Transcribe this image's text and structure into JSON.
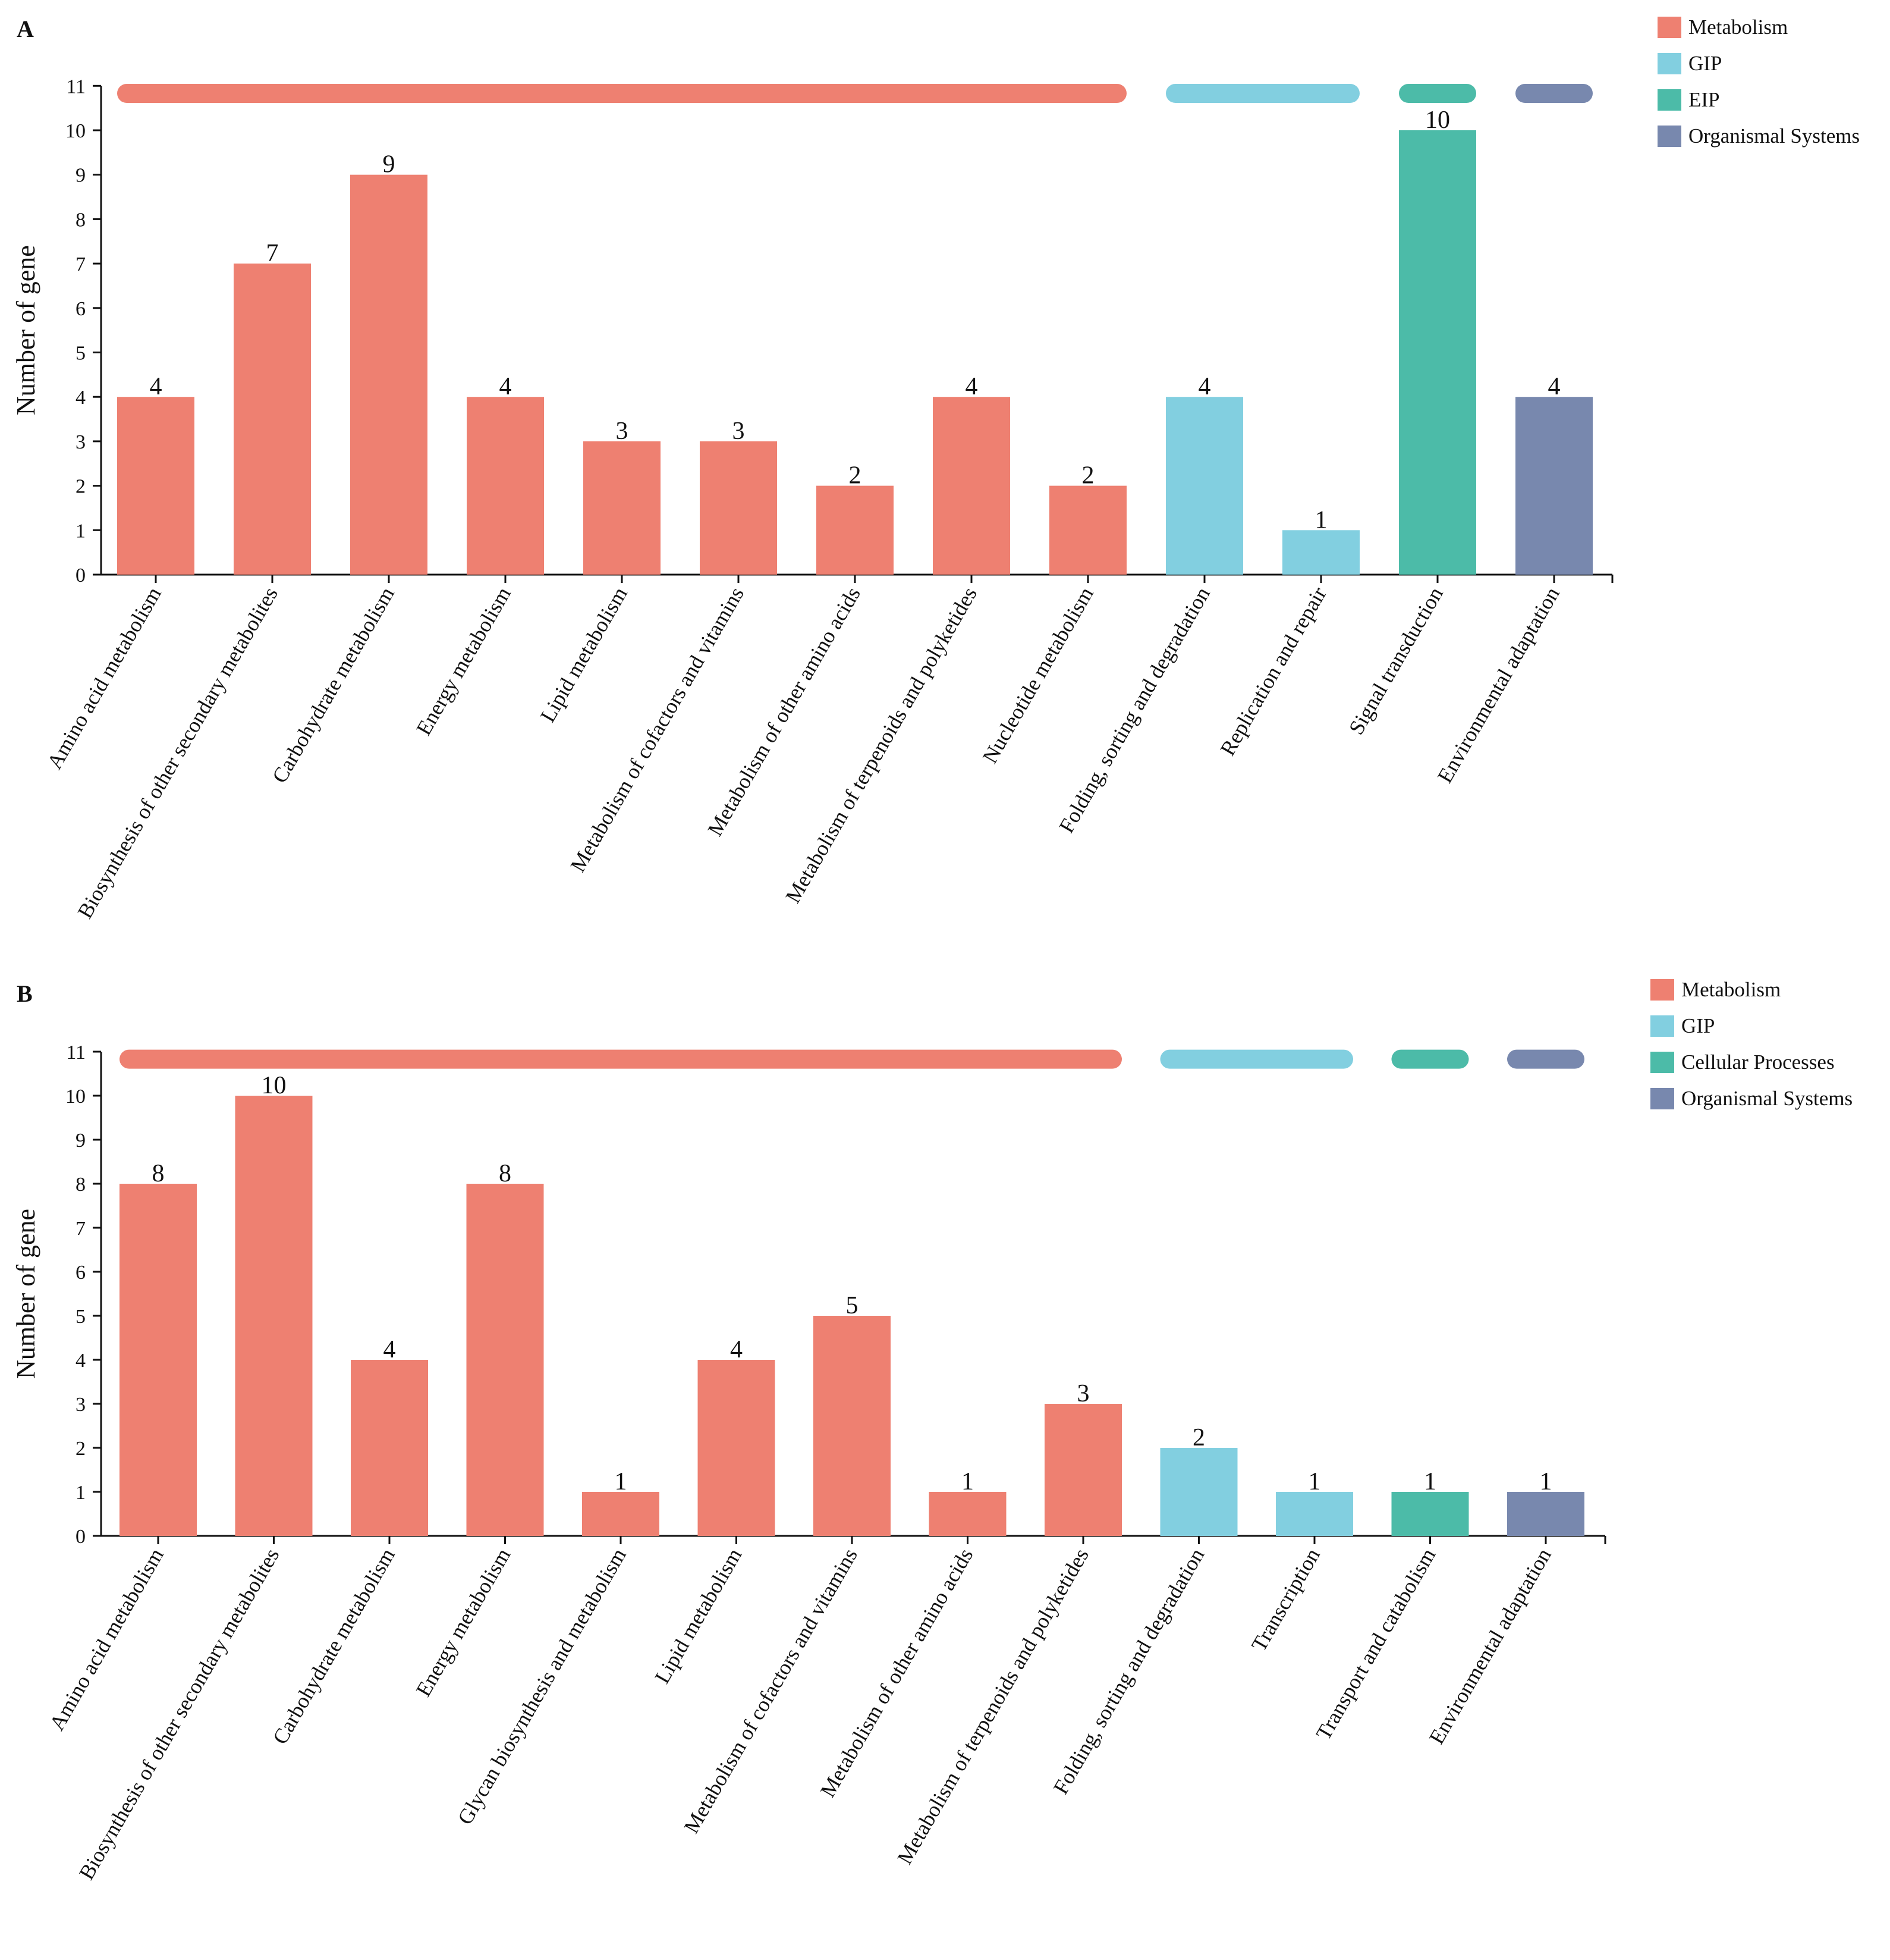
{
  "colors": {
    "Metabolism": "#EE8071",
    "GIP": "#82CFE0",
    "EIP": "#4CBBA8",
    "Cellular Processes": "#4CBBA8",
    "Organismal Systems": "#7888AE"
  },
  "chart_data": [
    {
      "panel": "A",
      "type": "bar",
      "ylabel": "Number of gene",
      "ylim": [
        0,
        11
      ],
      "yticks": [
        0,
        1,
        2,
        3,
        4,
        5,
        6,
        7,
        8,
        9,
        10,
        11
      ],
      "legend": [
        "Metabolism",
        "GIP",
        "EIP",
        "Organismal Systems"
      ],
      "legend_position": "top-right",
      "categories": [
        "Amino acid metabolism",
        "Biosynthesis of other secondary metabolites",
        "Carbohydrate metabolism",
        "Energy metabolism",
        "Lipid metabolism",
        "Metabolism of cofactors and vitamins",
        "Metabolism of other amino acids",
        "Metabolism of terpenoids and polyketides",
        "Nucleotide metabolism",
        "Folding, sorting and degradation",
        "Replication and repair",
        "Signal transduction",
        "Environmental adaptation"
      ],
      "values": [
        4,
        7,
        9,
        4,
        3,
        3,
        2,
        4,
        2,
        4,
        1,
        10,
        4
      ],
      "groups": [
        "Metabolism",
        "Metabolism",
        "Metabolism",
        "Metabolism",
        "Metabolism",
        "Metabolism",
        "Metabolism",
        "Metabolism",
        "Metabolism",
        "GIP",
        "GIP",
        "EIP",
        "Organismal Systems"
      ]
    },
    {
      "panel": "B",
      "type": "bar",
      "ylabel": "Number of gene",
      "ylim": [
        0,
        11
      ],
      "yticks": [
        0,
        1,
        2,
        3,
        4,
        5,
        6,
        7,
        8,
        9,
        10,
        11
      ],
      "legend": [
        "Metabolism",
        "GIP",
        "Cellular Processes",
        "Organismal Systems"
      ],
      "legend_position": "top-right",
      "categories": [
        "Amino acid metabolism",
        "Biosynthesis of other secondary metabolites",
        "Carbohydrate metabolism",
        "Energy metabolism",
        "Glycan biosynthesis and metabolism",
        "Lipid metabolism",
        "Metabolism of cofactors and vitamins",
        "Metabolism of other amino acids",
        "Metabolism of terpenoids and polyketides",
        "Folding, sorting and degradation",
        "Transcription",
        "Transport and catabolism",
        "Environmental adaptation"
      ],
      "values": [
        8,
        10,
        4,
        8,
        1,
        4,
        5,
        1,
        3,
        2,
        1,
        1,
        1
      ],
      "groups": [
        "Metabolism",
        "Metabolism",
        "Metabolism",
        "Metabolism",
        "Metabolism",
        "Metabolism",
        "Metabolism",
        "Metabolism",
        "Metabolism",
        "GIP",
        "GIP",
        "Cellular Processes",
        "Organismal Systems"
      ]
    }
  ]
}
